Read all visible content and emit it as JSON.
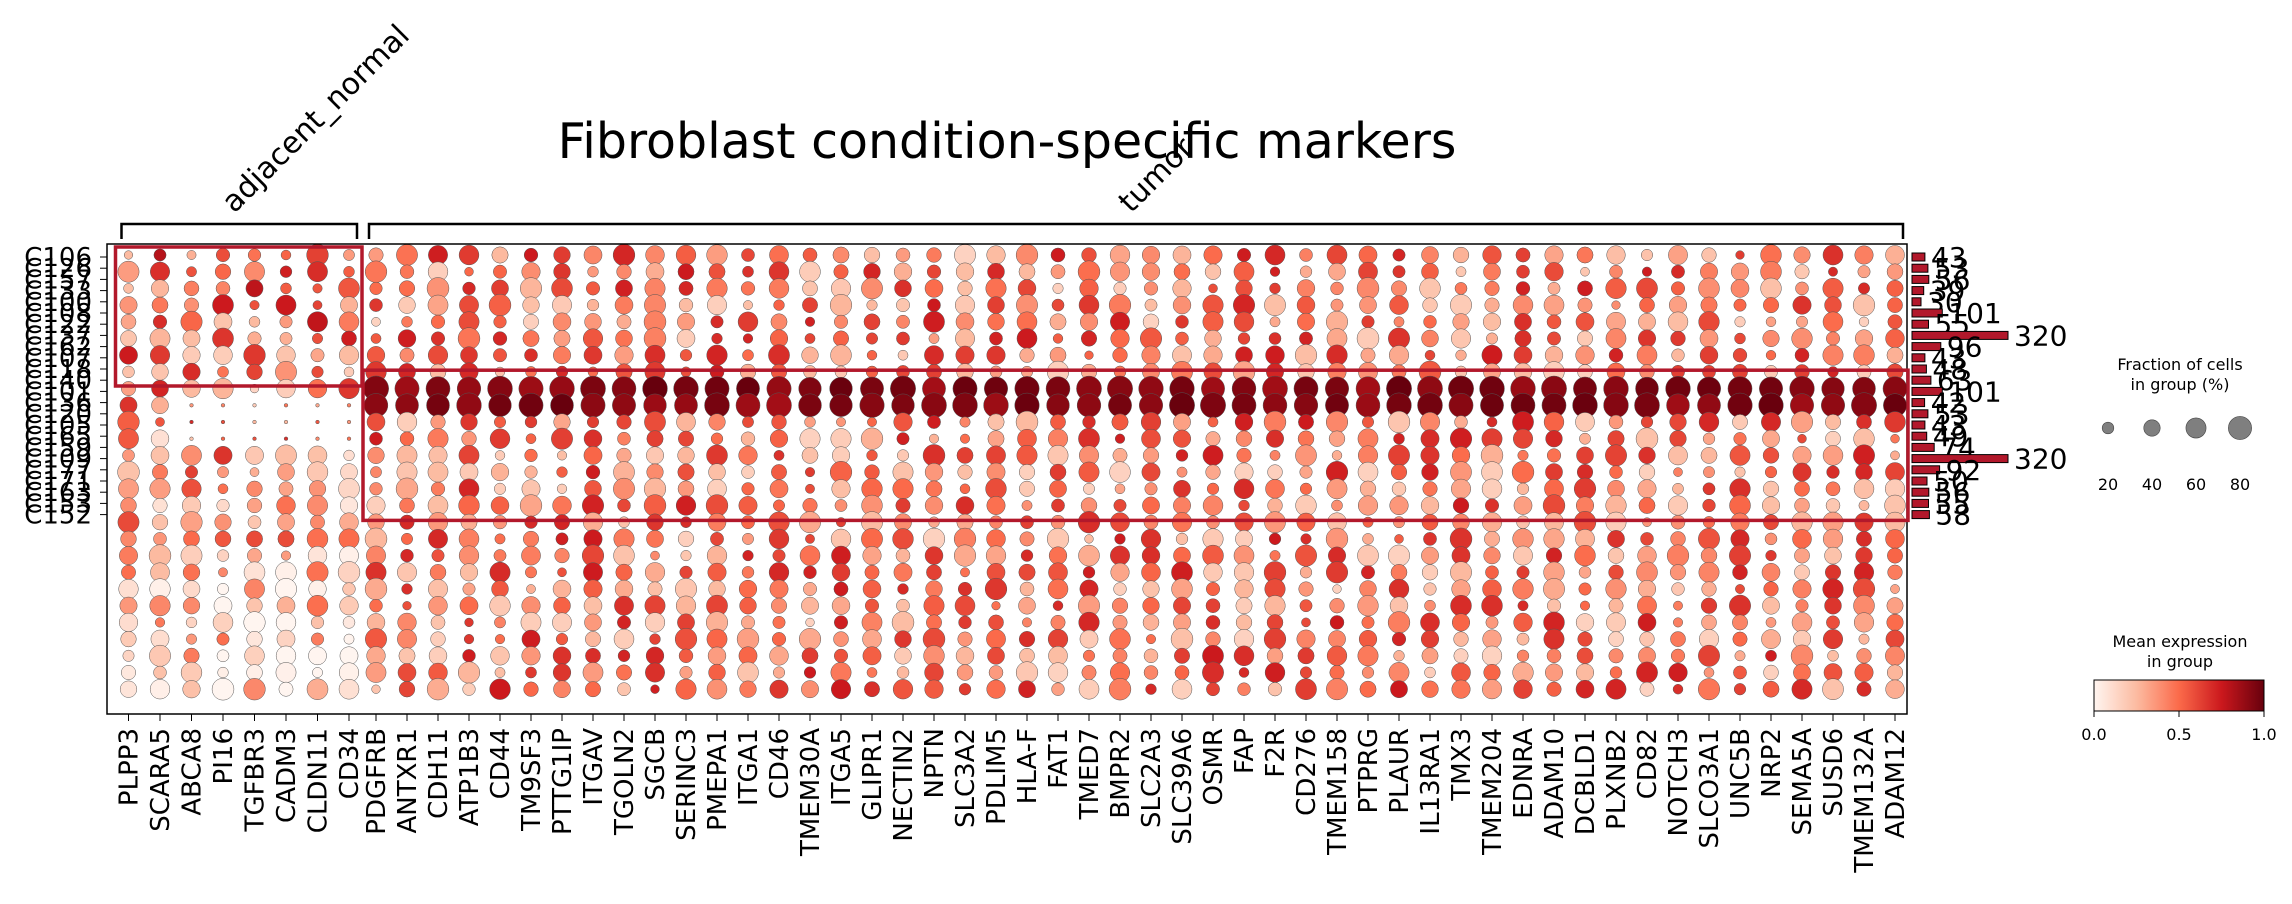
{
  "chart_data": {
    "type": "dotplot",
    "title": "Fibroblast condition-specific markers",
    "group_brackets": [
      {
        "label": "adjacent_normal",
        "start_gene": "PLPP3",
        "end_gene": "CD34"
      },
      {
        "label": "tumor",
        "start_gene": "PDGFRB",
        "end_gene": "ADAM12"
      }
    ],
    "genes": [
      "PLPP3",
      "SCARA5",
      "ABCA8",
      "PI16",
      "TGFBR3",
      "CADM3",
      "CLDN11",
      "CD34",
      "PDGFRB",
      "ANTXR1",
      "CDH11",
      "ATP1B3",
      "CD44",
      "TM9SF3",
      "PTTG1IP",
      "ITGAV",
      "TGOLN2",
      "SGCB",
      "SERINC3",
      "PMEPA1",
      "ITGA1",
      "CD46",
      "TMEM30A",
      "ITGA5",
      "GLIPR1",
      "NECTIN2",
      "NPTN",
      "SLC3A2",
      "PDLIM5",
      "HLA-F",
      "FAT1",
      "TMED7",
      "BMPR2",
      "SLC2A3",
      "SLC39A6",
      "OSMR",
      "FAP",
      "F2R",
      "CD276",
      "TMEM158",
      "PTPRG",
      "PLAUR",
      "IL13RA1",
      "TMX3",
      "TMEM204",
      "EDNRA",
      "ADAM10",
      "DCBLD1",
      "PLXNB2",
      "CD82",
      "NOTCH3",
      "SLCO3A1",
      "UNC5B",
      "NRP2",
      "SEMA5A",
      "SUSD6",
      "TMEM132A",
      "ADAM12"
    ],
    "clusters": [
      "C106",
      "C126",
      "C157",
      "C133",
      "C100",
      "C108",
      "C122",
      "C137",
      "C162",
      "C107",
      "C118",
      "C140",
      "C101",
      "C136",
      "C120",
      "C105",
      "C165",
      "C159",
      "C109",
      "C177",
      "C171",
      "C163",
      "C153",
      "C152"
    ],
    "cluster_cell_counts": [
      43,
      53,
      56,
      39,
      30,
      101,
      55,
      320,
      96,
      43,
      48,
      63,
      101,
      42,
      53,
      43,
      49,
      74,
      320,
      92,
      50,
      56,
      55,
      58
    ],
    "highlight_boxes": [
      {
        "clusters": [
          "C106",
          "C118"
        ],
        "genes": [
          "PLPP3",
          "CD34"
        ],
        "color": "#b2182b"
      },
      {
        "clusters": [
          "C140",
          "C153"
        ],
        "genes": [
          "PDGFRB",
          "ADAM12"
        ],
        "color": "#b2182b"
      }
    ],
    "size_legend": {
      "title_line1": "Fraction of cells",
      "title_line2": "in group (%)",
      "values": [
        20,
        40,
        60,
        80
      ],
      "labels": [
        "20",
        "40",
        "60",
        "80"
      ]
    },
    "color_legend": {
      "title_line1": "Mean expression",
      "title_line2": "in group",
      "range": [
        0,
        1
      ],
      "tick_labels": [
        "0.0",
        "0.5",
        "1.0"
      ],
      "colormap": "Reds"
    },
    "colors": {
      "low": "#fff5f0",
      "mid": "#fb6a4a",
      "high": "#67000d",
      "box": "#b2182b",
      "bar": "#b2182b"
    }
  }
}
